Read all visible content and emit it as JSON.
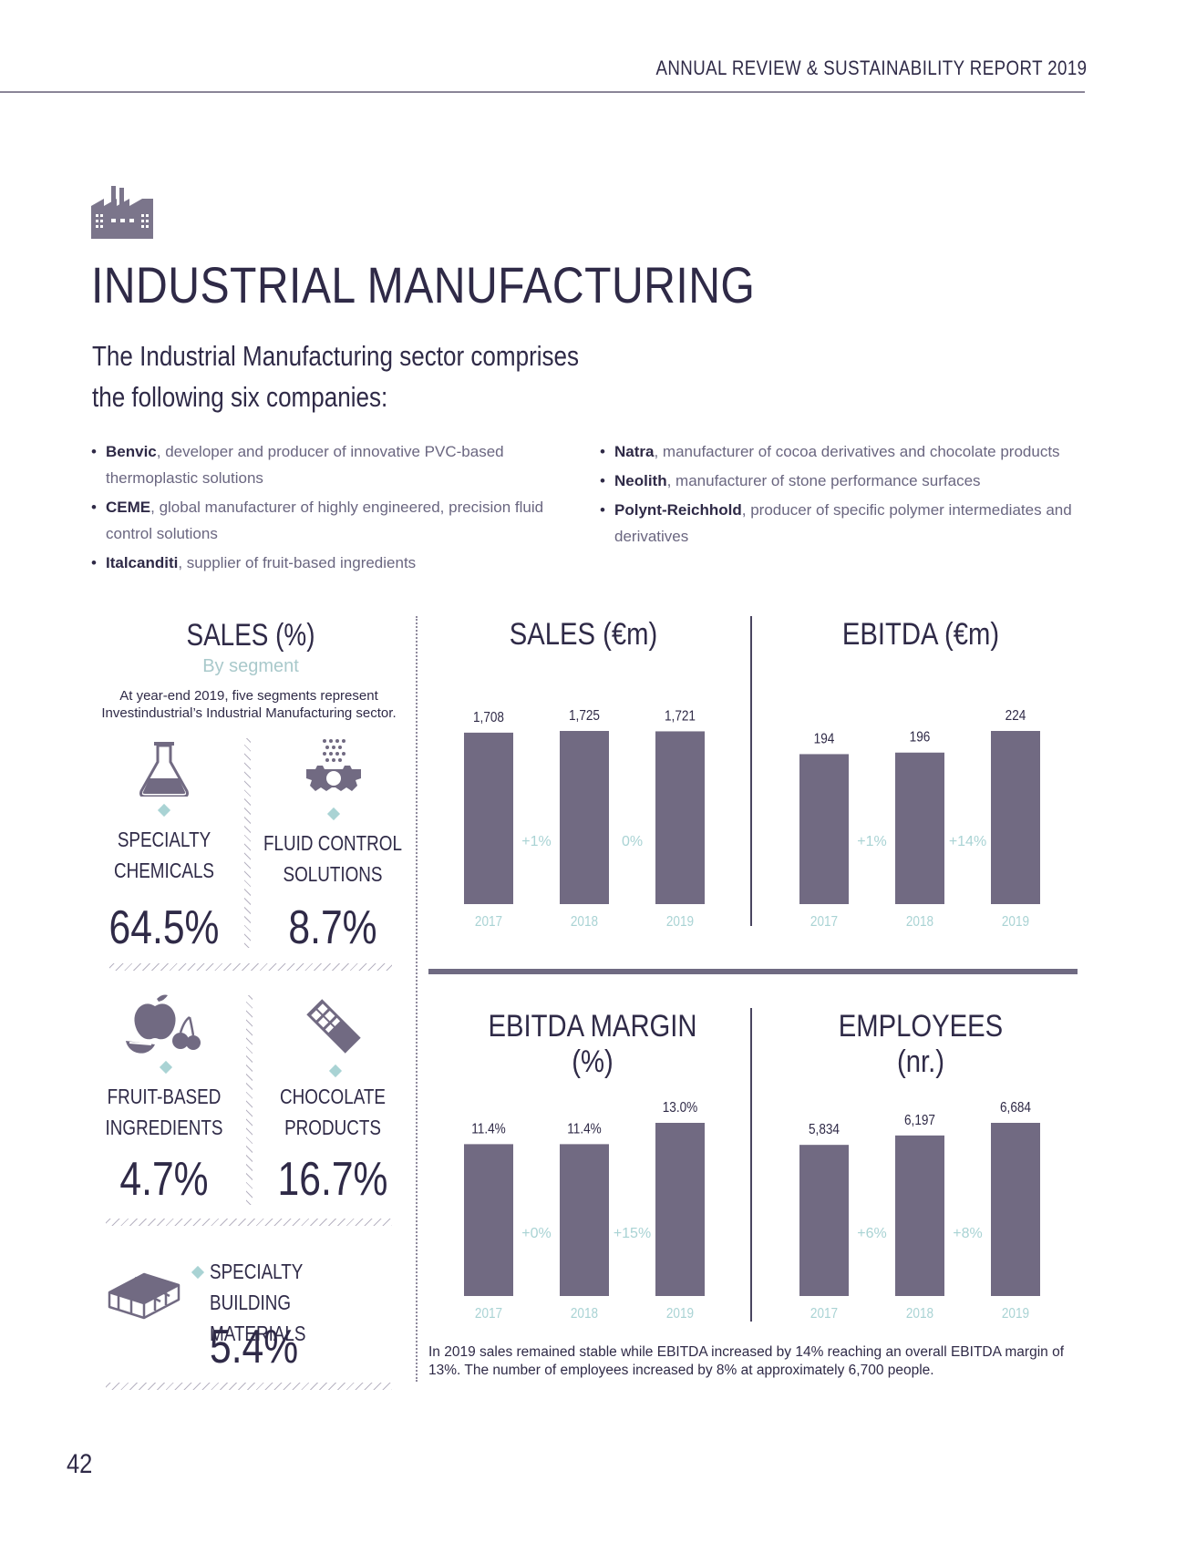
{
  "header": {
    "report_title": "ANNUAL REVIEW & SUSTAINABILITY REPORT 2019"
  },
  "page": {
    "title": "INDUSTRIAL MANUFACTURING",
    "intro_line1": "The Industrial Manufacturing sector comprises",
    "intro_line2": "the following six companies:",
    "number": "42"
  },
  "companies": [
    {
      "name": "Benvic",
      "desc": ", developer and producer of innovative PVC-based thermoplastic solutions"
    },
    {
      "name": "CEME",
      "desc": ", global manufacturer of highly engineered, precision fluid control solutions"
    },
    {
      "name": "Italcanditi",
      "desc": ", supplier of fruit-based ingredients"
    },
    {
      "name": "Natra",
      "desc": ", manufacturer of cocoa derivatives and chocolate products"
    },
    {
      "name": "Neolith",
      "desc": ", manufacturer of stone performance surfaces"
    },
    {
      "name": "Polynt-Reichhold",
      "desc": ", producer of specific polymer intermediates and derivatives"
    }
  ],
  "segments_panel": {
    "title": "SALES (%)",
    "subtitle": "By segment",
    "desc_line1": "At year-end 2019, five segments represent",
    "desc_line2": "Investindustrial’s Industrial Manufacturing sector.",
    "items": [
      {
        "line1": "SPECIALTY",
        "line2": "CHEMICALS",
        "pct": "64.5%",
        "icon": "flask-icon"
      },
      {
        "line1": "FLUID CONTROL",
        "line2": "SOLUTIONS",
        "pct": "8.7%",
        "icon": "gear-spray-icon"
      },
      {
        "line1": "FRUIT-BASED",
        "line2": "INGREDIENTS",
        "pct": "4.7%",
        "icon": "fruit-icon"
      },
      {
        "line1": "CHOCOLATE",
        "line2": "PRODUCTS",
        "pct": "16.7%",
        "icon": "chocolate-bar-icon"
      },
      {
        "line1": "SPECIALTY BUILDING",
        "line2": "MATERIALS",
        "pct": "5.4%",
        "icon": "bricks-icon"
      }
    ]
  },
  "summary": "In 2019 sales remained stable while EBITDA increased by 14% reaching an overall EBITDA margin of 13%. The number of employees increased by 8% at approximately 6,700 people.",
  "colors": {
    "bar": "#716a82",
    "accent": "#a9d3d4",
    "ink": "#2f2a47"
  },
  "chart_data": [
    {
      "type": "bar",
      "title": "SALES (€m)",
      "categories": [
        "2017",
        "2018",
        "2019"
      ],
      "values": [
        1708,
        1725,
        1721
      ],
      "value_labels": [
        "1,708",
        "1,725",
        "1,721"
      ],
      "changes": [
        "+1%",
        "0%"
      ],
      "ylim": [
        0,
        1725
      ]
    },
    {
      "type": "bar",
      "title": "EBITDA (€m)",
      "categories": [
        "2017",
        "2018",
        "2019"
      ],
      "values": [
        194,
        196,
        224
      ],
      "value_labels": [
        "194",
        "196",
        "224"
      ],
      "changes": [
        "+1%",
        "+14%"
      ],
      "ylim": [
        0,
        224
      ]
    },
    {
      "type": "bar",
      "title": "EBITDA MARGIN (%)",
      "categories": [
        "2017",
        "2018",
        "2019"
      ],
      "values": [
        11.4,
        11.4,
        13.0
      ],
      "value_labels": [
        "11.4%",
        "11.4%",
        "13.0%"
      ],
      "changes": [
        "+0%",
        "+15%"
      ],
      "ylim": [
        0,
        13
      ]
    },
    {
      "type": "bar",
      "title": "EMPLOYEES (nr.)",
      "categories": [
        "2017",
        "2018",
        "2019"
      ],
      "values": [
        5834,
        6197,
        6684
      ],
      "value_labels": [
        "5,834",
        "6,197",
        "6,684"
      ],
      "changes": [
        "+6%",
        "+8%"
      ],
      "ylim": [
        0,
        6684
      ]
    }
  ]
}
